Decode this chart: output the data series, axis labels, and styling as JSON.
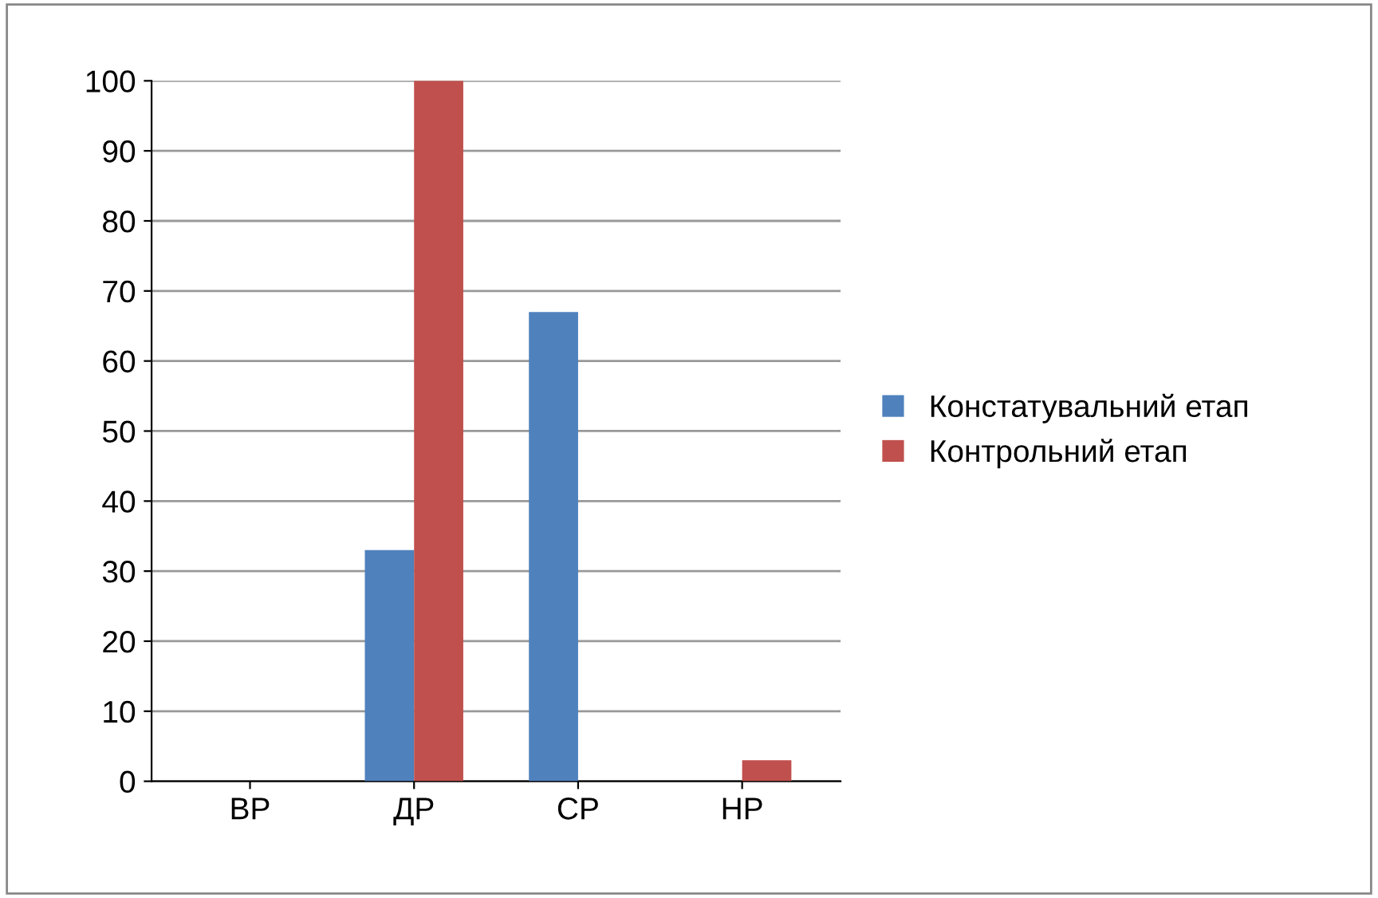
{
  "chart_data": {
    "type": "bar",
    "categories": [
      "ВР",
      "ДР",
      "СР",
      "НР"
    ],
    "series": [
      {
        "name": "Констатувальний етап",
        "color": "#4f81bd",
        "values": [
          0,
          33,
          67,
          0
        ]
      },
      {
        "name": "Контрольний етап",
        "color": "#c0504d",
        "values": [
          0,
          100,
          0,
          3
        ]
      }
    ],
    "ylim": [
      0,
      100
    ],
    "yticks": [
      0,
      10,
      20,
      30,
      40,
      50,
      60,
      70,
      80,
      90,
      100
    ],
    "grid": "y",
    "legend": "right"
  }
}
